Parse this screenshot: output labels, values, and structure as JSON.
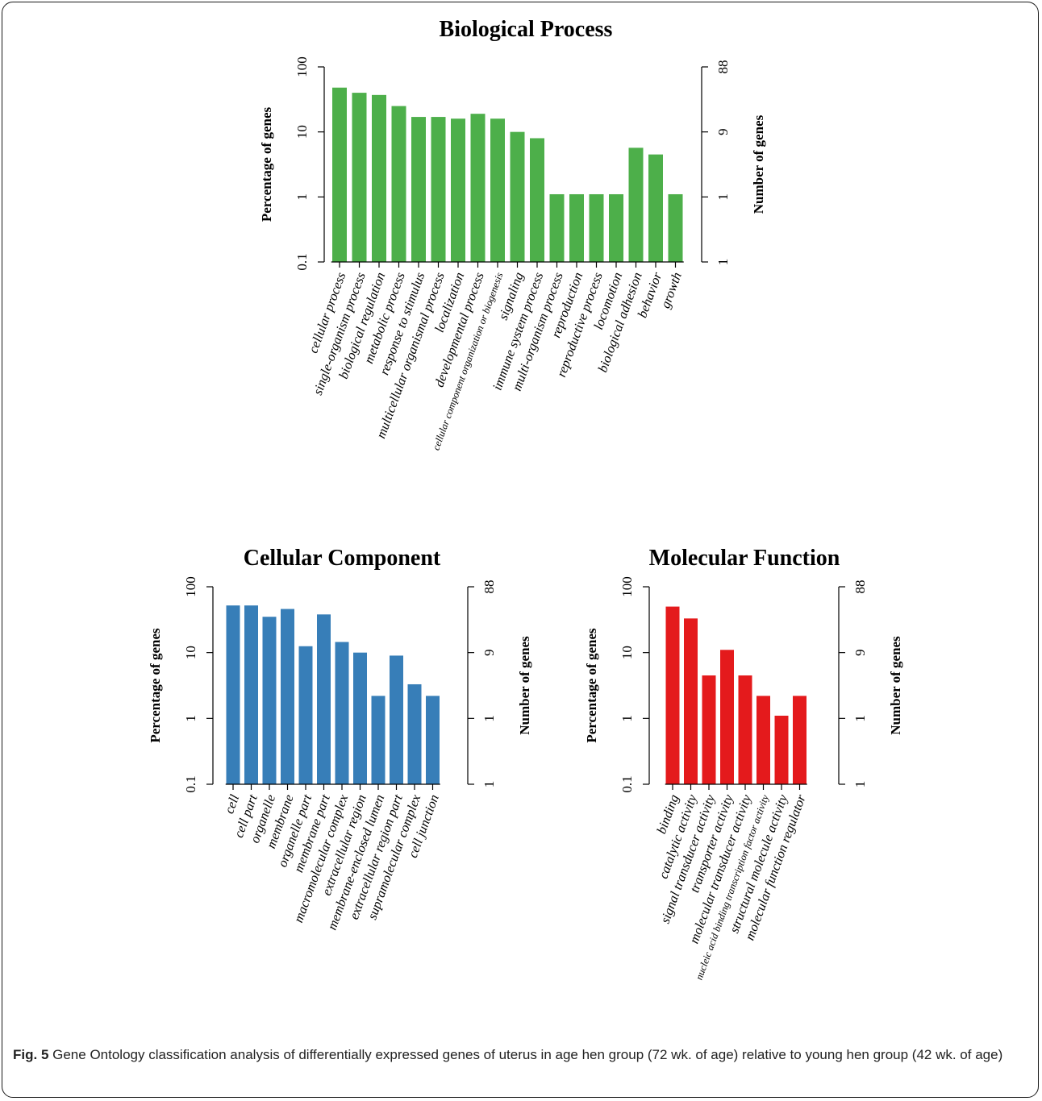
{
  "chart_data": [
    {
      "type": "bar",
      "title": "Biological Process",
      "ylabel": "Percentage of genes",
      "y2label": "Number of genes",
      "yscale": "log",
      "ylim": [
        0.1,
        100
      ],
      "yticks": [
        "0.1",
        "1",
        "10",
        "100"
      ],
      "y2ticks": [
        "1",
        "1",
        "9",
        "88"
      ],
      "color": "#4daf4a",
      "categories": [
        "cellular process",
        "single-organism process",
        "biological regulation",
        "metabolic process",
        "response to stimulus",
        "multicellular organismal process",
        "localization",
        "developmental process",
        "cellular component organization or biogenesis",
        "signaling",
        "immune system process",
        "multi-organism process",
        "reproduction",
        "reproductive process",
        "locomotion",
        "biological adhesion",
        "behavior",
        "growth"
      ],
      "values": [
        48,
        40,
        37,
        25,
        17,
        17,
        16,
        19,
        16,
        10,
        8,
        1.1,
        1.1,
        1.1,
        1.1,
        5.7,
        4.5,
        1.1
      ]
    },
    {
      "type": "bar",
      "title": "Cellular Component",
      "ylabel": "Percentage of genes",
      "y2label": "Number of genes",
      "yscale": "log",
      "ylim": [
        0.1,
        100
      ],
      "yticks": [
        "0.1",
        "1",
        "10",
        "100"
      ],
      "y2ticks": [
        "1",
        "1",
        "9",
        "88"
      ],
      "color": "#377eb8",
      "categories": [
        "cell",
        "cell  part",
        "organelle",
        "membrane",
        "organelle part",
        "membrane part",
        "macromolecular complex",
        "extracellular region",
        "membrane-enclosed lumen",
        "extracellular region part",
        "supramolecular complex",
        "cell junction"
      ],
      "values": [
        52,
        52,
        35,
        46,
        12.5,
        38,
        14.5,
        10,
        2.2,
        9,
        3.3,
        2.2
      ]
    },
    {
      "type": "bar",
      "title": "Molecular Function",
      "ylabel": "Percentage of genes",
      "y2label": "Number of  genes",
      "yscale": "log",
      "ylim": [
        0.1,
        100
      ],
      "yticks": [
        "0.1",
        "1",
        "10",
        "100"
      ],
      "y2ticks": [
        "1",
        "1",
        "9",
        "88"
      ],
      "color": "#e41a1c",
      "categories": [
        "binding",
        "catalytic activity",
        "signal transducer activity",
        "transporter activity",
        "molecular transducer activity",
        "nucleic acid binding transcription factor activity",
        "structural molecule activity",
        "molecular function regulator"
      ],
      "values": [
        50,
        33,
        4.5,
        11,
        4.5,
        2.2,
        1.1,
        2.2
      ]
    }
  ],
  "caption": {
    "label": "Fig. 5",
    "text": " Gene Ontology classification analysis of differentially expressed genes of uterus in age hen group (72 wk. of age) relative to young hen group (42 wk. of age)"
  }
}
